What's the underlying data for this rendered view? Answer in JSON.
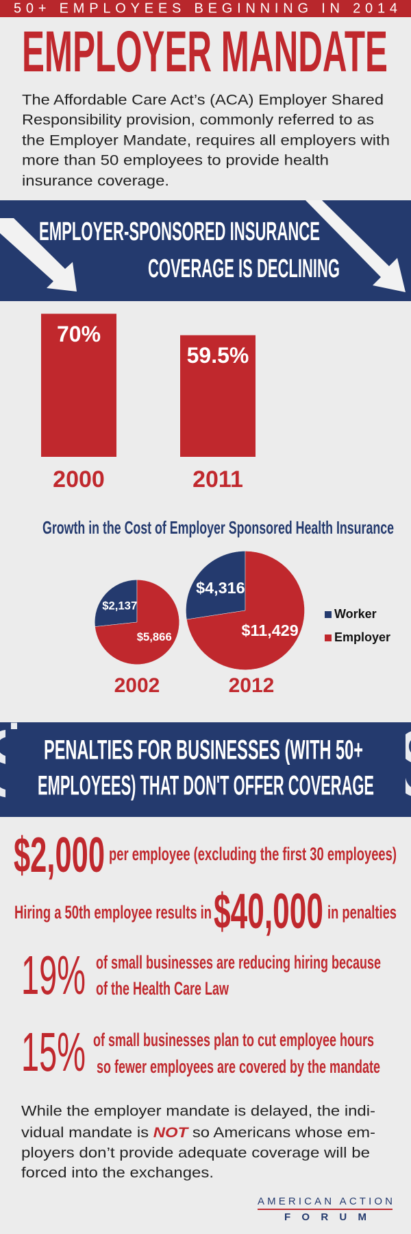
{
  "header": {
    "tagline": "50+ EMPLOYEES BEGINNING IN 2014",
    "title": "EMPLOYER MANDATE",
    "intro": [
      "The Affordable Care Act’s (ACA) Employer Shared",
      "Responsibility provision, commonly referred to as",
      "the Employer Mandate, requires all employers with",
      "more than 50 employees to provide health",
      "insurance coverage."
    ]
  },
  "banner_1": [
    "EMPLOYER-SPONSORED INSURANCE",
    "COVERAGE IS DECLINING"
  ],
  "chart_data": [
    {
      "type": "bar",
      "categories": [
        "2000",
        "2011"
      ],
      "values": [
        70,
        59.5
      ],
      "value_labels": [
        "70%",
        "59.5%"
      ],
      "color": "#c0282d"
    },
    {
      "type": "pie",
      "title": "Growth in the Cost of Employer Sponsored Health Insurance",
      "categories": [
        "2002",
        "2012"
      ],
      "legend": "right",
      "series": [
        {
          "name": "Worker",
          "color": "#243a6e",
          "values": [
            2137,
            4316
          ],
          "value_labels": [
            "$2,137",
            "$4,316"
          ]
        },
        {
          "name": "Employer",
          "color": "#c0282d",
          "values": [
            5866,
            11429
          ],
          "value_labels": [
            "$5,866",
            "$11,429"
          ]
        }
      ]
    }
  ],
  "banner_2": [
    "PENALTIES FOR BUSINESSES (WITH 50+",
    "EMPLOYEES) THAT DON'T OFFER COVERAGE"
  ],
  "penalties": {
    "per_employee": {
      "amount": "$2,000",
      "text": "per employee (excluding the first 30 employees)"
    },
    "fiftieth": {
      "before": "Hiring a 50th employee results in",
      "amount": "$40,000",
      "after": "in penalties"
    }
  },
  "stats": [
    {
      "value": "19%",
      "lines": [
        "of small businesses are reducing hiring because",
        "of the Health Care Law"
      ]
    },
    {
      "value": "15%",
      "lines": [
        "of small businesses plan to cut employee hours",
        "so fewer employees are covered by the mandate"
      ]
    }
  ],
  "closing": [
    "While the employer mandate is delayed, the indi-",
    [
      "vidual mandate is ",
      "NOT",
      " so Americans whose em-"
    ],
    "ployers don’t provide adequate coverage will be",
    "forced into the exchanges."
  ],
  "logo": {
    "line1": "AMERICAN ACTION",
    "line2": "FORUM"
  }
}
